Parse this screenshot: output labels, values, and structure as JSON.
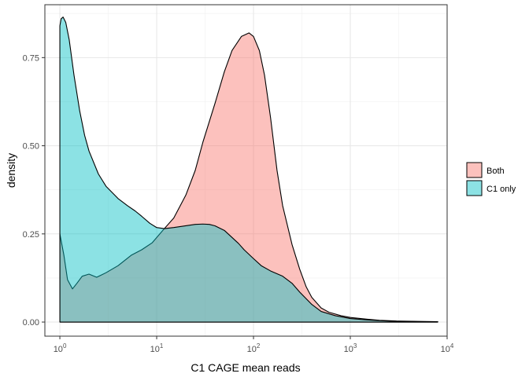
{
  "chart_data": {
    "type": "area",
    "xlabel": "C1 CAGE mean reads",
    "ylabel": "density",
    "x_scale": "log10",
    "xlim": [
      0.7,
      10000
    ],
    "ylim": [
      -0.04,
      0.9
    ],
    "x_ticks": [
      {
        "value": 1,
        "base": "10",
        "exp": "0"
      },
      {
        "value": 10,
        "base": "10",
        "exp": "1"
      },
      {
        "value": 100,
        "base": "10",
        "exp": "2"
      },
      {
        "value": 1000,
        "base": "10",
        "exp": "3"
      },
      {
        "value": 10000,
        "base": "10",
        "exp": "4"
      }
    ],
    "y_ticks": [
      {
        "value": 0,
        "label": "0.00"
      },
      {
        "value": 0.25,
        "label": "0.25"
      },
      {
        "value": 0.5,
        "label": "0.50"
      },
      {
        "value": 0.75,
        "label": "0.75"
      }
    ],
    "grid": true,
    "legend_position": "right",
    "series": [
      {
        "name": "Both",
        "color": "#F8766D",
        "points": [
          [
            1.0,
            0.25
          ],
          [
            1.1,
            0.19
          ],
          [
            1.2,
            0.12
          ],
          [
            1.35,
            0.094
          ],
          [
            1.5,
            0.11
          ],
          [
            1.7,
            0.13
          ],
          [
            2.0,
            0.136
          ],
          [
            2.4,
            0.127
          ],
          [
            3.0,
            0.14
          ],
          [
            4.0,
            0.16
          ],
          [
            5.5,
            0.19
          ],
          [
            7.0,
            0.205
          ],
          [
            9.0,
            0.225
          ],
          [
            12.0,
            0.265
          ],
          [
            15.0,
            0.295
          ],
          [
            20.0,
            0.36
          ],
          [
            25.0,
            0.43
          ],
          [
            30.0,
            0.51
          ],
          [
            40.0,
            0.62
          ],
          [
            50.0,
            0.71
          ],
          [
            60.0,
            0.77
          ],
          [
            75.0,
            0.81
          ],
          [
            90.0,
            0.82
          ],
          [
            100.0,
            0.81
          ],
          [
            115.0,
            0.77
          ],
          [
            130.0,
            0.7
          ],
          [
            150.0,
            0.58
          ],
          [
            175.0,
            0.43
          ],
          [
            200.0,
            0.33
          ],
          [
            250.0,
            0.22
          ],
          [
            300.0,
            0.15
          ],
          [
            350.0,
            0.1
          ],
          [
            400.0,
            0.07
          ],
          [
            500.0,
            0.04
          ],
          [
            600.0,
            0.028
          ],
          [
            800.0,
            0.018
          ],
          [
            1000.0,
            0.013
          ],
          [
            1500.0,
            0.008
          ],
          [
            2000.0,
            0.005
          ],
          [
            3000.0,
            0.003
          ],
          [
            5000.0,
            0.002
          ],
          [
            8000.0,
            0.001
          ]
        ]
      },
      {
        "name": "C1 only",
        "color": "#00BFC4",
        "points": [
          [
            1.0,
            0.84
          ],
          [
            1.03,
            0.86
          ],
          [
            1.08,
            0.865
          ],
          [
            1.15,
            0.85
          ],
          [
            1.25,
            0.8
          ],
          [
            1.4,
            0.7
          ],
          [
            1.6,
            0.6
          ],
          [
            1.8,
            0.53
          ],
          [
            2.0,
            0.485
          ],
          [
            2.5,
            0.42
          ],
          [
            3.0,
            0.385
          ],
          [
            4.0,
            0.35
          ],
          [
            5.0,
            0.33
          ],
          [
            6.0,
            0.315
          ],
          [
            7.0,
            0.3
          ],
          [
            8.5,
            0.28
          ],
          [
            10.0,
            0.268
          ],
          [
            12.0,
            0.265
          ],
          [
            15.0,
            0.268
          ],
          [
            20.0,
            0.273
          ],
          [
            25.0,
            0.277
          ],
          [
            30.0,
            0.278
          ],
          [
            35.0,
            0.277
          ],
          [
            40.0,
            0.273
          ],
          [
            50.0,
            0.26
          ],
          [
            60.0,
            0.24
          ],
          [
            70.0,
            0.223
          ],
          [
            80.0,
            0.205
          ],
          [
            100.0,
            0.18
          ],
          [
            120.0,
            0.16
          ],
          [
            150.0,
            0.145
          ],
          [
            200.0,
            0.13
          ],
          [
            250.0,
            0.11
          ],
          [
            300.0,
            0.085
          ],
          [
            400.0,
            0.05
          ],
          [
            500.0,
            0.03
          ],
          [
            700.0,
            0.018
          ],
          [
            1000.0,
            0.01
          ],
          [
            1500.0,
            0.006
          ],
          [
            2000.0,
            0.004
          ],
          [
            3000.0,
            0.002
          ],
          [
            5000.0,
            0.001
          ],
          [
            8000.0,
            0.001
          ]
        ]
      }
    ]
  }
}
